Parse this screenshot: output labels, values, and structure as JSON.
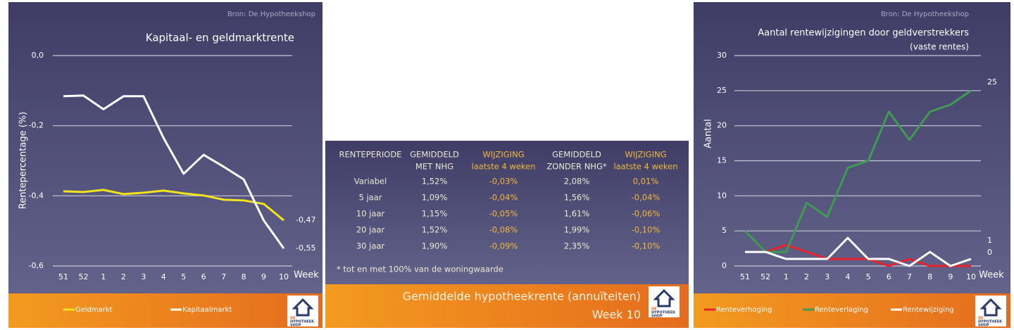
{
  "chart_data": [
    {
      "type": "line",
      "source": "Bron: De Hypotheekshop",
      "title": "Kapitaal- en geldmarktrente",
      "y_label": "Rentepercentage (%)",
      "x_label": "Week",
      "categories": [
        "51",
        "52",
        "1",
        "2",
        "3",
        "4",
        "5",
        "6",
        "7",
        "8",
        "9",
        "10"
      ],
      "series": [
        {
          "name": "Geldmarkt",
          "color": "#f2e41c",
          "values": [
            -0.387,
            -0.389,
            -0.383,
            -0.395,
            -0.391,
            -0.385,
            -0.393,
            -0.399,
            -0.411,
            -0.413,
            -0.423,
            -0.47
          ],
          "value_labels": [
            null,
            null,
            null,
            null,
            null,
            null,
            null,
            null,
            null,
            null,
            null,
            "-0,47"
          ]
        },
        {
          "name": "Kapitaalmarkt",
          "color": "#ffffff",
          "values": [
            -0.116,
            -0.114,
            -0.153,
            -0.116,
            -0.116,
            -0.235,
            -0.337,
            -0.283,
            -0.317,
            -0.353,
            -0.47,
            -0.55
          ],
          "value_labels": [
            null,
            null,
            null,
            null,
            null,
            null,
            null,
            null,
            null,
            null,
            null,
            "-0,55"
          ]
        }
      ],
      "ylim": [
        -0.6,
        0
      ],
      "yticks": [
        {
          "value": 0,
          "label": "0,0"
        },
        {
          "value": -0.2,
          "label": "-0,2"
        },
        {
          "value": -0.4,
          "label": "-0,4"
        },
        {
          "value": -0.6,
          "label": "-0,6"
        }
      ],
      "grid": true
    },
    {
      "type": "line",
      "source": "Bron: De Hypotheekshop",
      "title": "Aantal rentewijzigingen door geldverstrekkers",
      "subtitle": "(vaste rentes)",
      "y_label": "Aantal",
      "x_label": "Week",
      "categories": [
        "51",
        "52",
        "1",
        "2",
        "3",
        "4",
        "5",
        "6",
        "7",
        "8",
        "9",
        "10"
      ],
      "series": [
        {
          "name": "Renteverhoging",
          "color": "#e8222a",
          "values": [
            2,
            2,
            3,
            2,
            1,
            1,
            1,
            0,
            1,
            0,
            0,
            0
          ]
        },
        {
          "name": "Renteverlaging",
          "color": "#3f9a52",
          "values": [
            5,
            2,
            2,
            9,
            7,
            14,
            15,
            22,
            18,
            22,
            23,
            25
          ]
        },
        {
          "name": "Rentewijziging",
          "color": "#ffffff",
          "values": [
            2,
            2,
            1,
            1,
            1,
            4,
            1,
            1,
            0,
            2,
            0,
            1
          ]
        }
      ],
      "ylim": [
        0,
        30
      ],
      "yticks": [
        0,
        5,
        10,
        15,
        20,
        25,
        30
      ],
      "grid": true,
      "end_labels": true
    }
  ],
  "table": {
    "header": [
      [
        "RENTEPERIODE"
      ],
      [
        "GEMIDDELD",
        "MET NHG"
      ],
      [
        "WIJZIGING",
        "laatste 4 weken"
      ],
      [
        "GEMIDDELD",
        "ZONDER NHG*"
      ],
      [
        "WIJZIGING",
        "laatste 4 weken"
      ]
    ],
    "rows": [
      [
        "Variabel",
        "1,52%",
        "-0,03%",
        "2,08%",
        "0,01%"
      ],
      [
        "5 jaar",
        "1,09%",
        "-0,04%",
        "1,56%",
        "-0,04%"
      ],
      [
        "10 jaar",
        "1,15%",
        "-0,05%",
        "1,61%",
        "-0,06%"
      ],
      [
        "20 jaar",
        "1,52%",
        "-0,08%",
        "1,99%",
        "-0,10%"
      ],
      [
        "30 jaar",
        "1,90%",
        "-0,09%",
        "2,35%",
        "-0,10%"
      ]
    ],
    "footnote": "* tot en met 100% van de woningwaarde",
    "title": "Gemiddelde hypotheekrente (annuïteiten)",
    "week": "Week 10"
  },
  "logo": [
    "DE",
    "HYPOTHEEK",
    "SHOP"
  ]
}
